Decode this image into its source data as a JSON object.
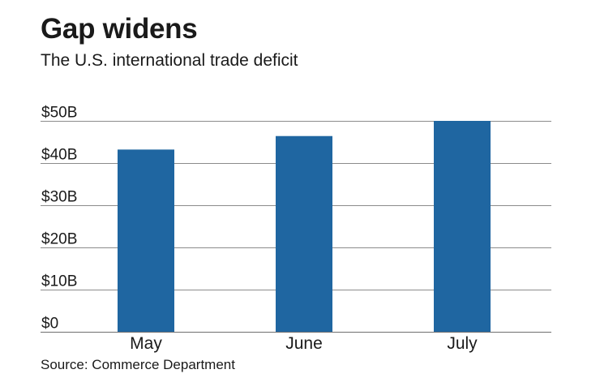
{
  "header": {
    "title": "Gap widens",
    "subtitle": "The U.S. international trade deficit"
  },
  "footer": {
    "source": "Source: Commerce Department"
  },
  "colors": {
    "bar": "#1f66a1",
    "grid": "#8c8c8c",
    "text": "#1a1a1a"
  },
  "chart_data": {
    "type": "bar",
    "title": "Gap widens",
    "subtitle": "The U.S. international trade deficit",
    "categories": [
      "May",
      "June",
      "July"
    ],
    "values": [
      43.2,
      46.4,
      50.1
    ],
    "ylim": [
      0,
      50
    ],
    "yticks": [
      0,
      10,
      20,
      30,
      40,
      50
    ],
    "ytick_labels": [
      "$0",
      "$10B",
      "$20B",
      "$30B",
      "$40B",
      "$50B"
    ],
    "xlabel": "",
    "ylabel": "",
    "grid": true,
    "legend": "none"
  }
}
